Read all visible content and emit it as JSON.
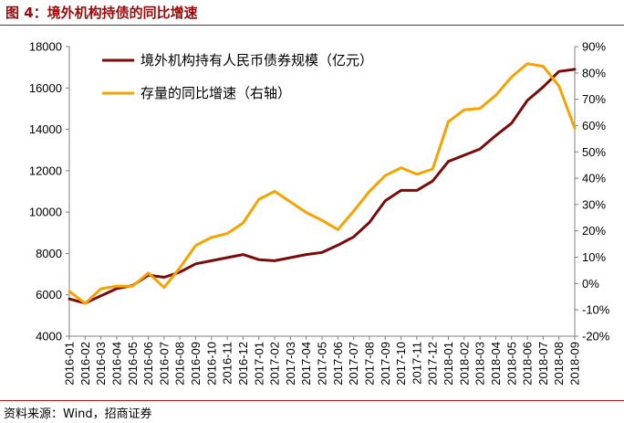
{
  "header": {
    "title": "图 4：境外机构持债的同比增速"
  },
  "footer": {
    "source": "资料来源：Wind，招商证券"
  },
  "chart_data": {
    "type": "line",
    "categories": [
      "2016-01",
      "2016-02",
      "2016-03",
      "2016-04",
      "2016-05",
      "2016-06",
      "2016-07",
      "2016-08",
      "2016-09",
      "2016-10",
      "2016-11",
      "2016-12",
      "2017-01",
      "2017-02",
      "2017-03",
      "2017-04",
      "2017-05",
      "2017-06",
      "2017-07",
      "2017-08",
      "2017-09",
      "2017-10",
      "2017-11",
      "2017-12",
      "2018-01",
      "2018-02",
      "2018-03",
      "2018-04",
      "2018-05",
      "2018-06",
      "2018-07",
      "2018-08",
      "2018-09"
    ],
    "series": [
      {
        "name": "境外机构持有人民币债券规模（亿元）",
        "axis": "left",
        "color": "#7b0a0a",
        "values": [
          5800,
          5600,
          5950,
          6300,
          6450,
          6950,
          6850,
          7100,
          7500,
          7650,
          7800,
          7950,
          7700,
          7650,
          7800,
          7950,
          8050,
          8400,
          8800,
          9500,
          10550,
          11050,
          11050,
          11500,
          12450,
          12750,
          13050,
          13700,
          14300,
          15400,
          16050,
          16800,
          16900
        ]
      },
      {
        "name": "存量的同比增速（右轴）",
        "axis": "right",
        "color": "#f5a300",
        "values": [
          -3,
          -7.5,
          -2,
          -1,
          -1,
          4,
          -1.5,
          6,
          14.5,
          17.5,
          19,
          23,
          32,
          35,
          31,
          27,
          24,
          20.5,
          27.5,
          35,
          41,
          44,
          41.5,
          43.5,
          61.5,
          66,
          66.5,
          71.5,
          78.5,
          83.5,
          82.5,
          75,
          59
        ]
      }
    ],
    "y_left": {
      "min": 4000,
      "max": 18000,
      "ticks": [
        "4000",
        "6000",
        "8000",
        "10000",
        "12000",
        "14000",
        "16000",
        "18000"
      ]
    },
    "y_right": {
      "min": -20,
      "max": 90,
      "ticks": [
        "-20%",
        "-10%",
        "0%",
        "10%",
        "20%",
        "30%",
        "40%",
        "50%",
        "60%",
        "70%",
        "80%",
        "90%"
      ]
    },
    "legend_position": "top-left",
    "grid": false
  }
}
